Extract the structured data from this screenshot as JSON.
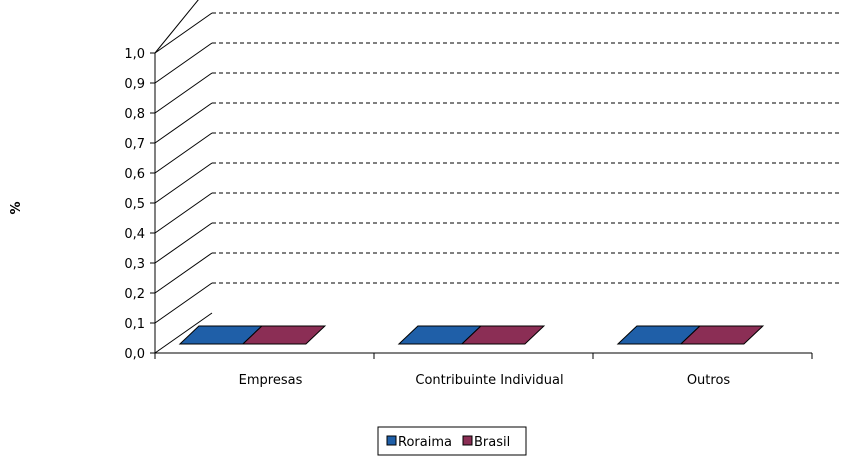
{
  "chart_data": {
    "type": "bar",
    "three_d": true,
    "ylabel": "%",
    "ylim": [
      0,
      1.0
    ],
    "ytick_labels": [
      "0,0",
      "0,1",
      "0,2",
      "0,3",
      "0,4",
      "0,5",
      "0,6",
      "0,7",
      "0,8",
      "0,9",
      "1,0"
    ],
    "yticks": [
      0,
      0.1,
      0.2,
      0.3,
      0.4,
      0.5,
      0.6,
      0.7,
      0.8,
      0.9,
      1.0
    ],
    "gridlines": "dashed",
    "categories": [
      "Empresas",
      "Contribuinte Individual",
      "Outros"
    ],
    "series": [
      {
        "name": "Roraima",
        "color": "#1f5fa8",
        "values": [
          0,
          0,
          0
        ]
      },
      {
        "name": "Brasil",
        "color": "#8b2e55",
        "values": [
          0,
          0,
          0
        ]
      }
    ],
    "legend": {
      "placement": "bottom-center"
    }
  }
}
